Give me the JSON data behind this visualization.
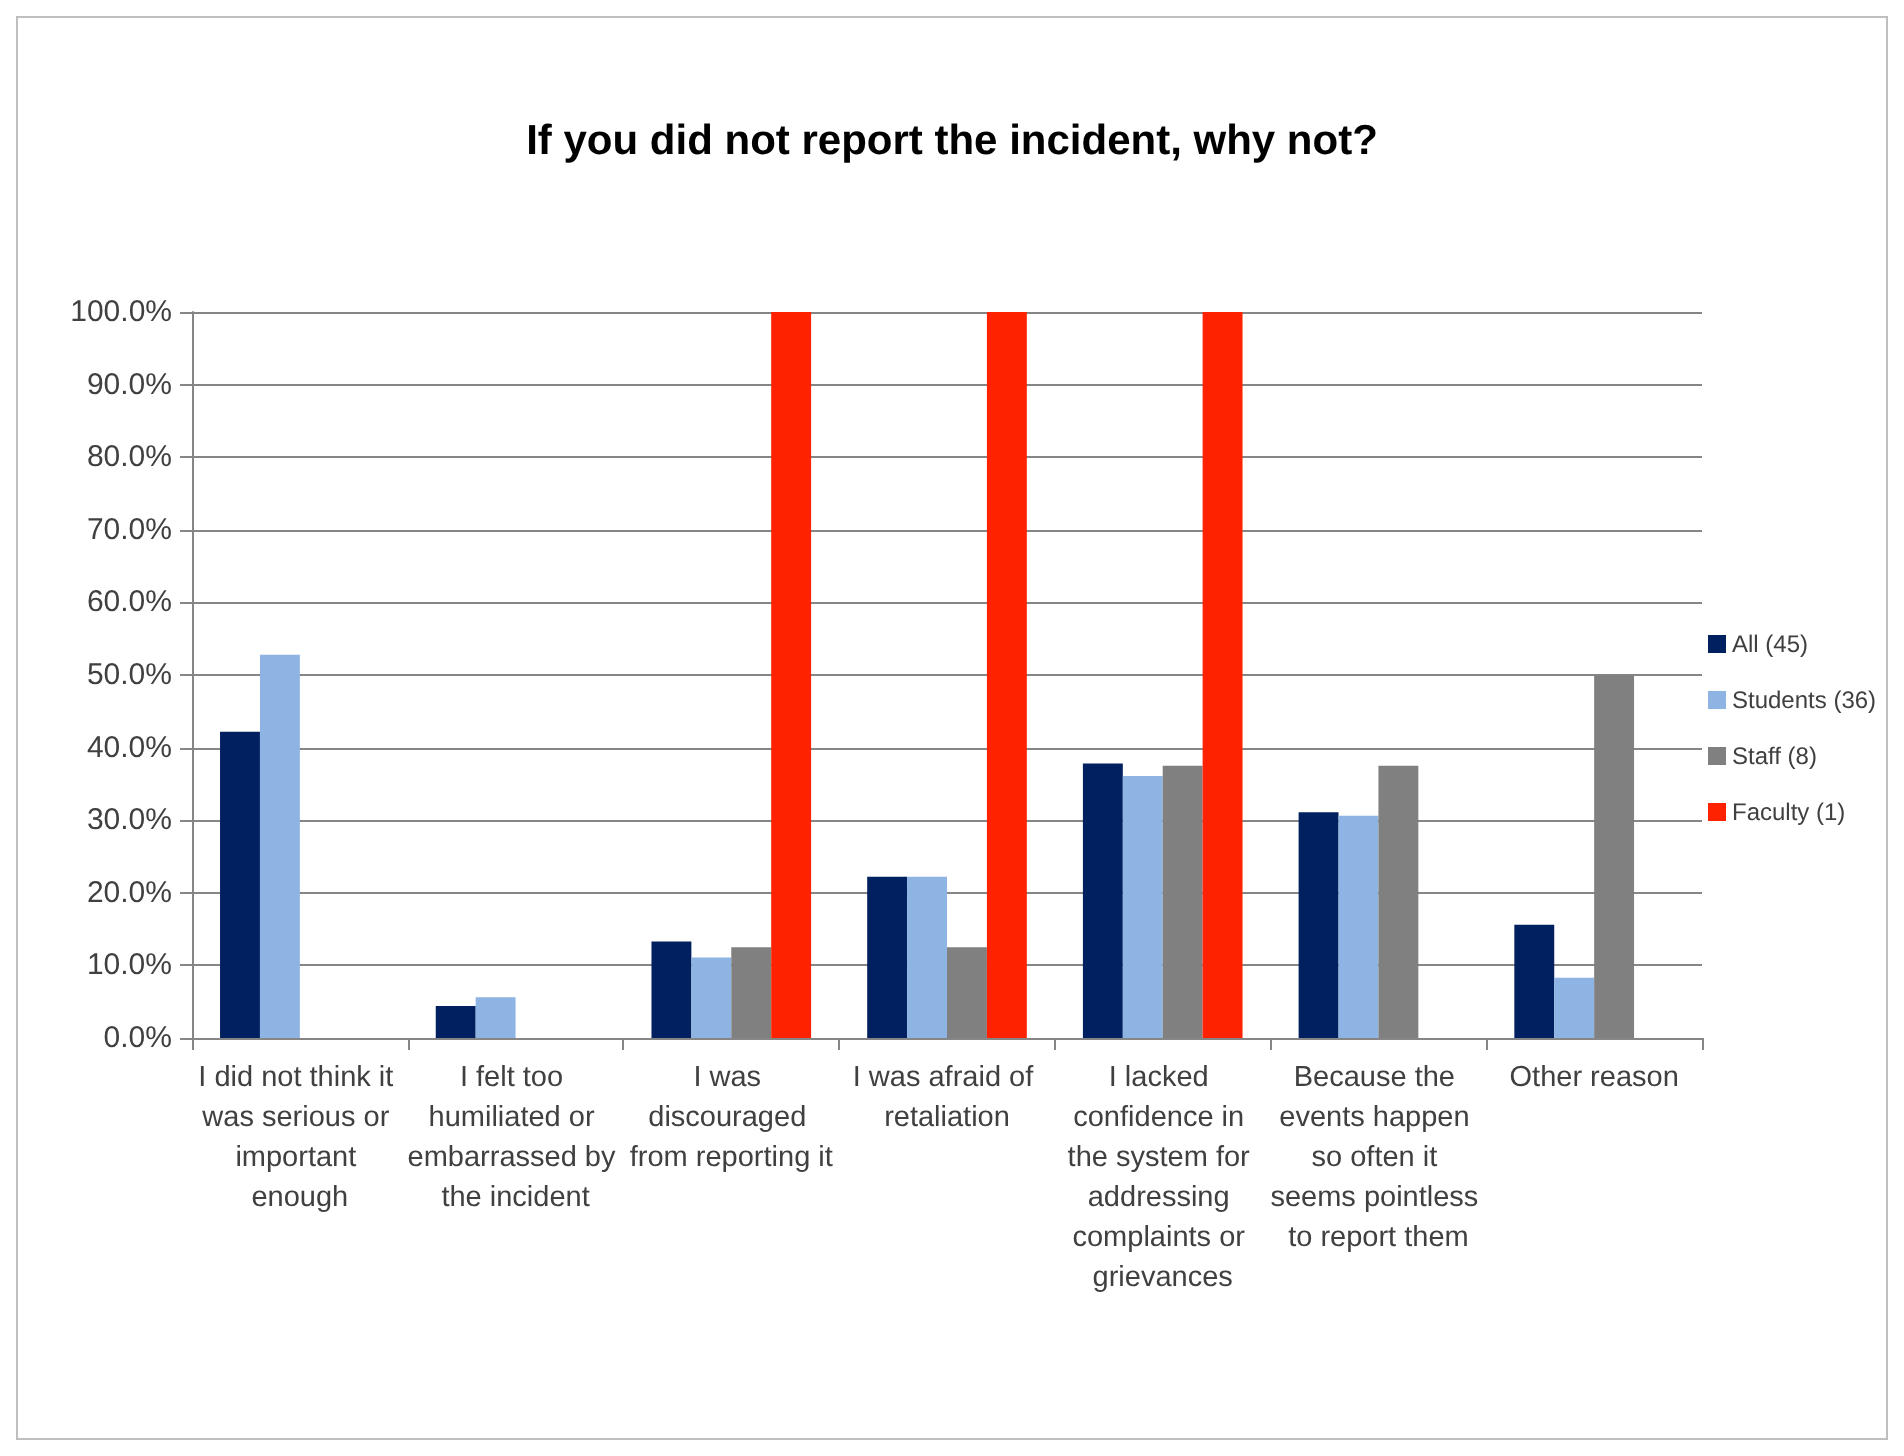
{
  "chart_data": {
    "type": "bar",
    "title": "If you did not report the incident, why not?",
    "categories": [
      "I did not think it was serious or important enough",
      "I felt too humiliated or embarrassed by the incident",
      "I was discouraged from reporting it",
      "I was afraid of retaliation",
      "I lacked confidence in the system for addressing complaints or grievances",
      "Because the events happen so often it seems pointless to report them",
      "Other reason"
    ],
    "series": [
      {
        "name": "All (45)",
        "color": "#002060",
        "values": [
          42.2,
          4.4,
          13.3,
          22.2,
          37.8,
          31.1,
          15.6
        ]
      },
      {
        "name": "Students (36)",
        "color": "#8db4e2",
        "values": [
          52.8,
          5.6,
          11.1,
          22.2,
          36.1,
          30.6,
          8.3
        ]
      },
      {
        "name": "Staff (8)",
        "color": "#808080",
        "values": [
          0,
          0,
          12.5,
          12.5,
          37.5,
          37.5,
          50
        ]
      },
      {
        "name": "Faculty (1)",
        "color": "#ff2200",
        "values": [
          0,
          0,
          100,
          100,
          100,
          0,
          0
        ]
      }
    ],
    "ylim": [
      0,
      100
    ],
    "yticks": [
      {
        "value": 0,
        "label": "0.0%"
      },
      {
        "value": 10,
        "label": "10.0%"
      },
      {
        "value": 20,
        "label": "20.0%"
      },
      {
        "value": 30,
        "label": "30.0%"
      },
      {
        "value": 40,
        "label": "40.0%"
      },
      {
        "value": 50,
        "label": "50.0%"
      },
      {
        "value": 60,
        "label": "60.0%"
      },
      {
        "value": 70,
        "label": "70.0%"
      },
      {
        "value": 80,
        "label": "80.0%"
      },
      {
        "value": 90,
        "label": "90.0%"
      },
      {
        "value": 100,
        "label": "100.0%"
      }
    ],
    "grid": "y",
    "legend": "right"
  }
}
